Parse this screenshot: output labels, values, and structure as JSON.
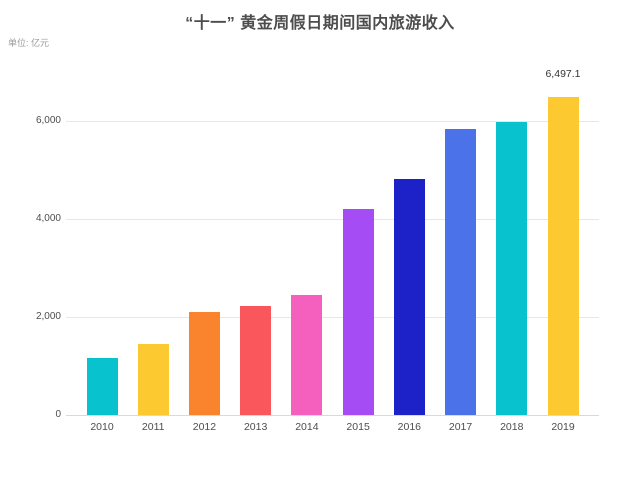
{
  "chart_data": {
    "type": "bar",
    "title": "“十一” 黄金周假日期间国内旅游收入",
    "unit_label": "单位: 亿元",
    "xlabel": "",
    "ylabel": "",
    "categories": [
      "2010",
      "2011",
      "2012",
      "2013",
      "2014",
      "2015",
      "2016",
      "2017",
      "2018",
      "2019"
    ],
    "values": [
      1166,
      1448,
      2105,
      2233,
      2453,
      4213,
      4822,
      5836,
      5990.8,
      6497.1
    ],
    "bar_colors": [
      "#08C2CE",
      "#FCC930",
      "#FA832D",
      "#FA575C",
      "#F560BE",
      "#A64CF5",
      "#1C22C8",
      "#4C72E9",
      "#08C2CE",
      "#FCC930"
    ],
    "ylim": [
      0,
      6800
    ],
    "y_ticks": [
      {
        "value": 0,
        "label": "0"
      },
      {
        "value": 2000,
        "label": "2,000"
      },
      {
        "value": 4000,
        "label": "4,000"
      },
      {
        "value": 6000,
        "label": "6,000"
      }
    ],
    "grid": "horizontal",
    "legend": "none",
    "annotations": [
      {
        "category": "2019",
        "text": "6,497.1"
      }
    ]
  }
}
